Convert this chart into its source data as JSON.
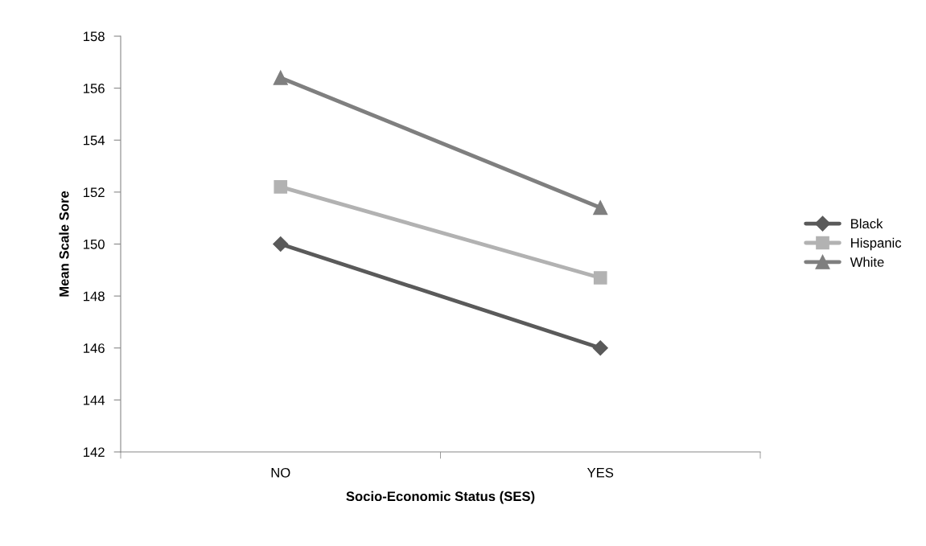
{
  "chart_data": {
    "type": "line",
    "xlabel": "Socio-Economic Status (SES)",
    "ylabel": "Mean Scale Sore",
    "categories": [
      "NO",
      "YES"
    ],
    "series": [
      {
        "name": "Black",
        "color": "#5a5a5a",
        "values": [
          150,
          146
        ],
        "marker": "diamond"
      },
      {
        "name": "Hispanic",
        "color": "#b2b2b2",
        "values": [
          152.2,
          148.7
        ],
        "marker": "square"
      },
      {
        "name": "White",
        "color": "#7f7f7f",
        "values": [
          156.4,
          151.4
        ],
        "marker": "triangle"
      }
    ],
    "ylim": [
      142,
      158
    ],
    "yticks": [
      142,
      144,
      146,
      148,
      150,
      152,
      154,
      156,
      158
    ],
    "grid": false,
    "legend": "right",
    "line_style": "solid"
  }
}
